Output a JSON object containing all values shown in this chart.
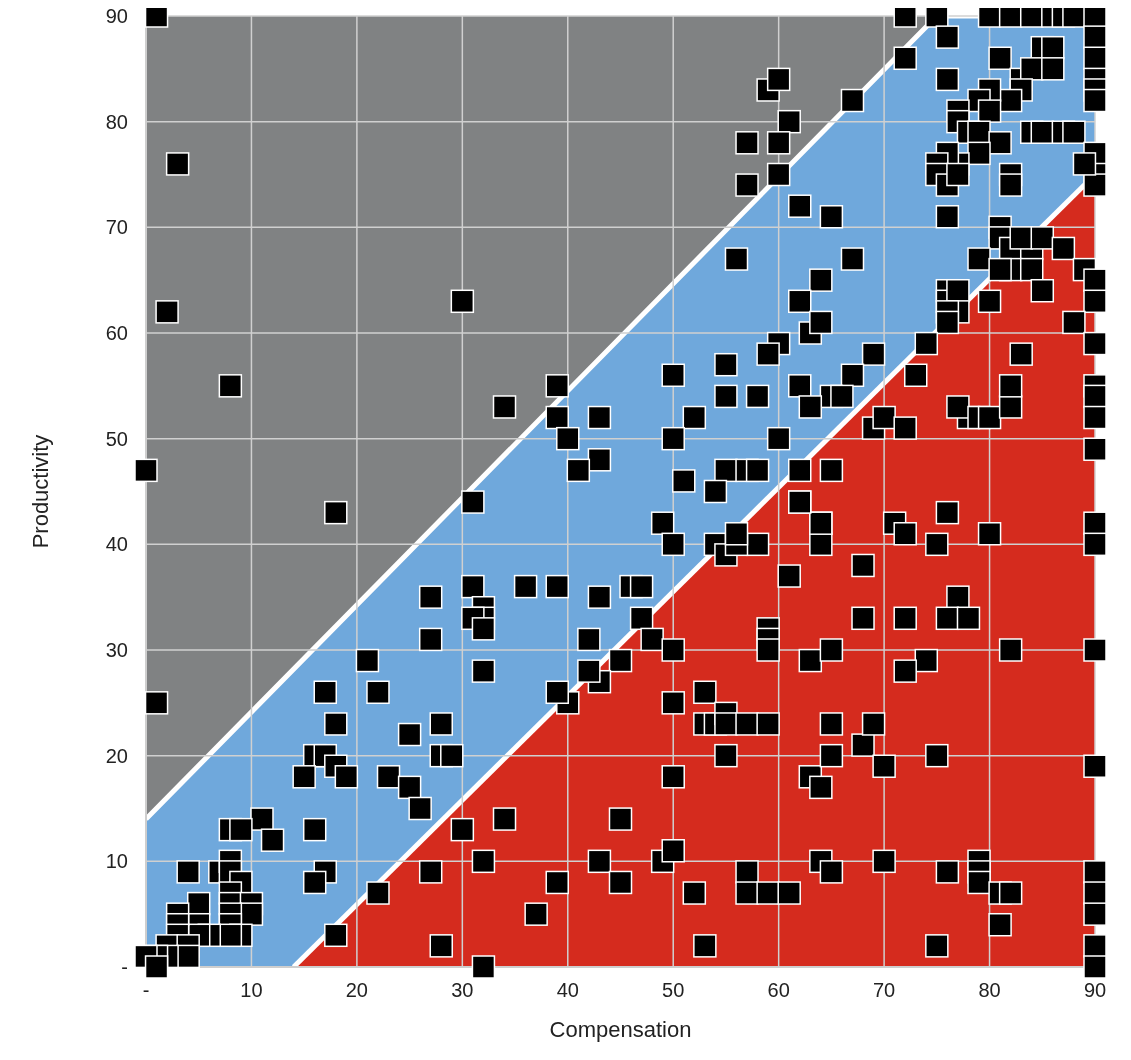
{
  "chart_data": {
    "type": "scatter",
    "xlabel": "Compensation",
    "ylabel": "Productivity",
    "xlim": [
      0,
      90
    ],
    "ylim": [
      0,
      90
    ],
    "xticks": [
      {
        "value": 0,
        "label": "-"
      },
      10,
      20,
      30,
      40,
      50,
      60,
      70,
      80,
      90
    ],
    "yticks": [
      {
        "value": 0,
        "label": "-"
      },
      10,
      20,
      30,
      40,
      50,
      60,
      70,
      80,
      90
    ],
    "grid": true,
    "marker": "square",
    "series": [
      {
        "type": "area",
        "marker": "none",
        "color": "#6fa8dc",
        "x": [
          0,
          75,
          90
        ],
        "values": [
          14,
          90,
          90
        ]
      },
      {
        "type": "area",
        "marker": "none",
        "color": "#d52b1e",
        "x": [
          14,
          90
        ],
        "values": [
          0,
          75
        ]
      },
      {
        "type": "scatter",
        "color": "#000000",
        "x": [
          1,
          3,
          2,
          8,
          0,
          18,
          30,
          1,
          72,
          75,
          72,
          76,
          67,
          76,
          59,
          60,
          61,
          57,
          60,
          57,
          60,
          62,
          65,
          67,
          56,
          64,
          62,
          63,
          64,
          60,
          59,
          69,
          55,
          50,
          67,
          62,
          55,
          58,
          65,
          66,
          63,
          52,
          43,
          39,
          39,
          34,
          40,
          50,
          60,
          51,
          43,
          41,
          55,
          57,
          58,
          65,
          62,
          54,
          62,
          31,
          49,
          64,
          50,
          54,
          55,
          58,
          80,
          82,
          84,
          86,
          87,
          88,
          90,
          90,
          90,
          90,
          90,
          90,
          81,
          85,
          86,
          83,
          84,
          86,
          83,
          82,
          80,
          79,
          80,
          77,
          77,
          78,
          79,
          84,
          85,
          87,
          88,
          81,
          79,
          77,
          76,
          75,
          75,
          76,
          77,
          82,
          82,
          90,
          90,
          90,
          89,
          76,
          81,
          81,
          82,
          84,
          83,
          85,
          87,
          79,
          82,
          84,
          81,
          89,
          90,
          90,
          85,
          80,
          76,
          76,
          77,
          77,
          76,
          76,
          74,
          88,
          90,
          83,
          90,
          90,
          90,
          90,
          78,
          77,
          79,
          80,
          82,
          82,
          73,
          69,
          70,
          72,
          71,
          72,
          75,
          76,
          80,
          90,
          90,
          77,
          76,
          78,
          68,
          68,
          72,
          74,
          72,
          82,
          90,
          61,
          59,
          59,
          59,
          64,
          64,
          62,
          63,
          65,
          56,
          56,
          47,
          48,
          45,
          42,
          43,
          42,
          50,
          40,
          39,
          50,
          53,
          53,
          54,
          55,
          55,
          57,
          59,
          55,
          50,
          63,
          64,
          65,
          65,
          68,
          69,
          70,
          75,
          90,
          45,
          49,
          50,
          43,
          45,
          39,
          37,
          32,
          34,
          30,
          27,
          28,
          32,
          52,
          53,
          57,
          57,
          59,
          61,
          64,
          65,
          70,
          76,
          79,
          79,
          79,
          81,
          82,
          81,
          75,
          90,
          90,
          90,
          90,
          90,
          36,
          31,
          32,
          32,
          31,
          32,
          32,
          39,
          43,
          46,
          47,
          27,
          27,
          21,
          17,
          22,
          18,
          28,
          28,
          29,
          25,
          16,
          17,
          18,
          19,
          15,
          23,
          25,
          26,
          16,
          17,
          16,
          18,
          22,
          11,
          12,
          8,
          9,
          4,
          7,
          8,
          8,
          9,
          8,
          8,
          10,
          10,
          8,
          8,
          9,
          8,
          5,
          5,
          6,
          5,
          3,
          3,
          3,
          2,
          4,
          4,
          2,
          1,
          0,
          1
        ],
        "values": [
          90,
          76,
          62,
          55,
          47,
          43,
          63,
          25,
          90,
          90,
          86,
          88,
          82,
          84,
          83,
          84,
          80,
          78,
          78,
          74,
          75,
          72,
          71,
          67,
          67,
          65,
          63,
          60,
          61,
          59,
          58,
          58,
          57,
          56,
          56,
          55,
          54,
          54,
          54,
          54,
          53,
          52,
          52,
          52,
          55,
          53,
          50,
          50,
          50,
          46,
          48,
          47,
          47,
          47,
          47,
          47,
          47,
          45,
          44,
          44,
          42,
          42,
          40,
          40,
          39,
          40,
          90,
          90,
          90,
          90,
          90,
          90,
          90,
          88,
          86,
          84,
          83,
          82,
          86,
          87,
          87,
          84,
          85,
          85,
          83,
          82,
          83,
          82,
          81,
          81,
          80,
          79,
          79,
          79,
          79,
          79,
          79,
          78,
          77,
          76,
          77,
          76,
          75,
          74,
          75,
          75,
          74,
          77,
          75,
          74,
          76,
          71,
          70,
          69,
          68,
          68,
          69,
          69,
          68,
          67,
          66,
          66,
          66,
          66,
          65,
          63,
          64,
          63,
          64,
          63,
          64,
          62,
          62,
          61,
          59,
          61,
          59,
          58,
          55,
          54,
          52,
          49,
          52,
          53,
          52,
          52,
          53,
          55,
          56,
          51,
          52,
          51,
          42,
          41,
          40,
          43,
          41,
          42,
          40,
          35,
          33,
          33,
          38,
          33,
          33,
          29,
          28,
          30,
          30,
          37,
          32,
          31,
          30,
          40,
          42,
          44,
          29,
          30,
          40,
          41,
          33,
          31,
          29,
          31,
          27,
          28,
          30,
          25,
          26,
          25,
          26,
          23,
          23,
          24,
          23,
          23,
          23,
          20,
          18,
          18,
          17,
          20,
          23,
          21,
          23,
          19,
          20,
          19,
          14,
          10,
          11,
          10,
          8,
          8,
          5,
          10,
          14,
          13,
          9,
          2,
          0,
          7,
          2,
          9,
          7,
          7,
          7,
          10,
          9,
          10,
          9,
          10,
          9,
          8,
          7,
          7,
          4,
          2,
          9,
          7,
          5,
          2,
          0,
          36,
          36,
          34,
          33,
          33,
          32,
          28,
          36,
          35,
          36,
          36,
          35,
          31,
          29,
          26,
          26,
          23,
          23,
          20,
          20,
          22,
          20,
          20,
          19,
          18,
          18,
          18,
          17,
          15,
          13,
          9,
          8,
          3,
          7,
          14,
          12,
          13,
          13,
          9,
          9,
          10,
          9,
          8,
          7,
          6,
          6,
          5,
          5,
          4,
          3,
          3,
          6,
          4,
          3,
          3,
          5,
          4,
          3,
          2,
          2,
          1,
          1,
          1,
          1,
          0
        ]
      }
    ]
  }
}
